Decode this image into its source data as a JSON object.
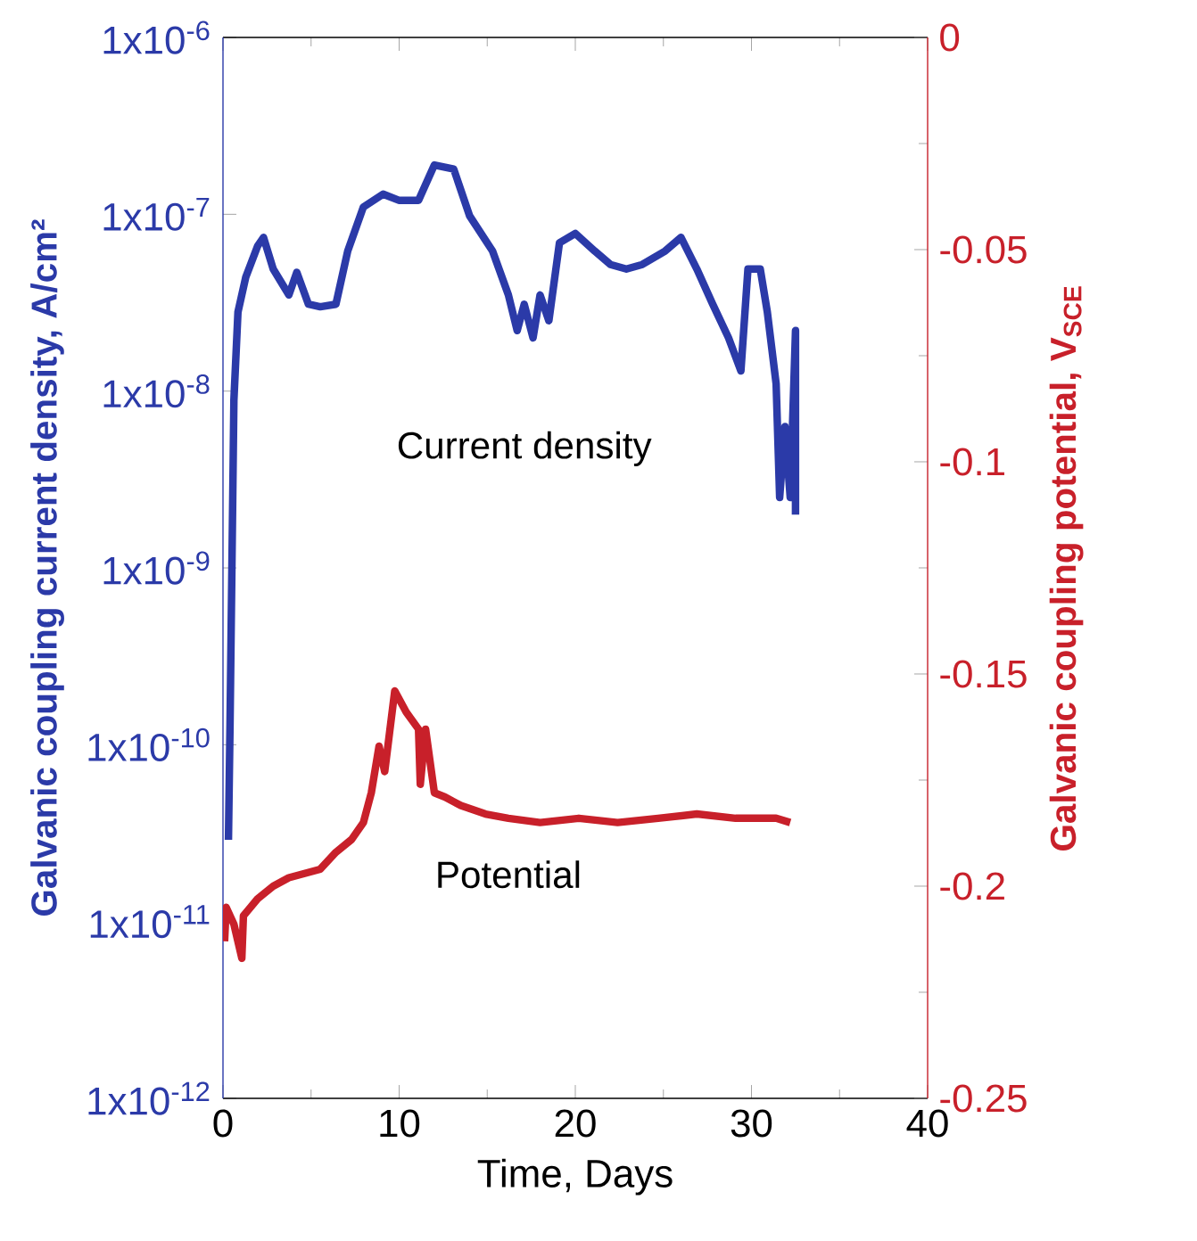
{
  "chart_data": {
    "type": "line",
    "xlabel": "Time, Days",
    "ylabel": "Galvanic coupling current density, A/cm²",
    "y2label": "Galvanic coupling potential, V$_{SCE}$",
    "xlim": [
      0,
      40
    ],
    "xticks": [
      0,
      10,
      20,
      30,
      40
    ],
    "ylim": [
      1e-12,
      1e-06
    ],
    "yticks": [
      {
        "value": 1e-12,
        "label": "1x10$^{-12}$"
      },
      {
        "value": 1e-11,
        "label": "1x10$^{-11}$"
      },
      {
        "value": 1e-10,
        "label": "1x10$^{-10}$"
      },
      {
        "value": 1e-09,
        "label": "1x10$^{-9}$"
      },
      {
        "value": 1e-08,
        "label": "1x10$^{-8}$"
      },
      {
        "value": 1e-07,
        "label": "1x10$^{-7}$"
      },
      {
        "value": 1e-06,
        "label": "1x10$^{-6}$"
      }
    ],
    "y2lim": [
      -0.25,
      0
    ],
    "y2ticks": [
      -0.25,
      -0.2,
      -0.15,
      -0.1,
      -0.05,
      0
    ],
    "log": "y",
    "series": [
      {
        "name": "Current density",
        "color": "#2b3aa8",
        "x": [
          0.31,
          0.4,
          0.62,
          0.85,
          1.29,
          1.96,
          2.3,
          2.85,
          3.74,
          4.19,
          4.85,
          5.52,
          6.41,
          7.08,
          7.97,
          9.09,
          9.98,
          11.1,
          12.0,
          13.1,
          14.0,
          15.3,
          16.2,
          16.7,
          17.1,
          17.6,
          18.0,
          18.5,
          19.1,
          20.0,
          21.1,
          22.0,
          22.9,
          23.8,
          25.1,
          26.0,
          26.9,
          27.8,
          28.7,
          29.4,
          29.8,
          30.5,
          30.9,
          31.4,
          31.6,
          31.9,
          32.2,
          32.5,
          32.5
        ],
        "values": [
          2.9e-11,
          1.3e-10,
          8.9e-09,
          2.8e-08,
          4.4e-08,
          6.6e-08,
          7.4e-08,
          4.9e-08,
          3.5e-08,
          4.7e-08,
          3.1e-08,
          3e-08,
          3.1e-08,
          6.2e-08,
          1.1e-07,
          1.3e-07,
          1.2e-07,
          1.2e-07,
          1.9e-07,
          1.8e-07,
          9.8e-08,
          6.2e-08,
          3.5e-08,
          2.2e-08,
          3.1e-08,
          2e-08,
          3.5e-08,
          2.5e-08,
          6.9e-08,
          7.8e-08,
          6.2e-08,
          5.2e-08,
          4.9e-08,
          5.2e-08,
          6.2e-08,
          7.4e-08,
          4.9e-08,
          3.1e-08,
          2e-08,
          1.3e-08,
          4.9e-08,
          4.9e-08,
          2.8e-08,
          1.1e-08,
          2.5e-09,
          6.3e-09,
          2.5e-09,
          2.2e-08,
          2e-09
        ]
      },
      {
        "name": "Potential",
        "color": "#c8202a",
        "axis": "y2",
        "x": [
          0.09,
          0.18,
          0.62,
          1.07,
          1.16,
          1.96,
          2.85,
          3.74,
          4.63,
          5.52,
          6.41,
          7.3,
          7.97,
          8.42,
          8.86,
          9.18,
          9.75,
          10.4,
          11.1,
          11.2,
          11.5,
          12.0,
          12.6,
          13.5,
          14.9,
          16.2,
          18.0,
          20.2,
          22.4,
          24.7,
          26.9,
          29.1,
          31.4,
          32.2
        ],
        "values": [
          -0.213,
          -0.205,
          -0.209,
          -0.217,
          -0.207,
          -0.203,
          -0.2,
          -0.198,
          -0.197,
          -0.196,
          -0.192,
          -0.189,
          -0.185,
          -0.178,
          -0.167,
          -0.173,
          -0.154,
          -0.159,
          -0.163,
          -0.176,
          -0.163,
          -0.178,
          -0.179,
          -0.181,
          -0.183,
          -0.184,
          -0.185,
          -0.184,
          -0.185,
          -0.184,
          -0.183,
          -0.184,
          -0.184,
          -0.185
        ]
      }
    ]
  }
}
